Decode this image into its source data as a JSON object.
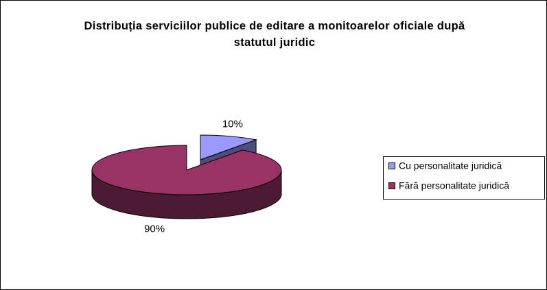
{
  "chart_data": {
    "type": "pie",
    "title": "Distribuția serviciilor publice de editare a monitoarelor oficiale după statutul juridic",
    "categories": [
      "Cu personalitate juridică",
      "Fără personalitate juridică"
    ],
    "values": [
      10,
      90
    ],
    "value_labels": [
      "10%",
      "90%"
    ],
    "colors": [
      "#9999ff",
      "#993366"
    ],
    "legend": "right"
  }
}
